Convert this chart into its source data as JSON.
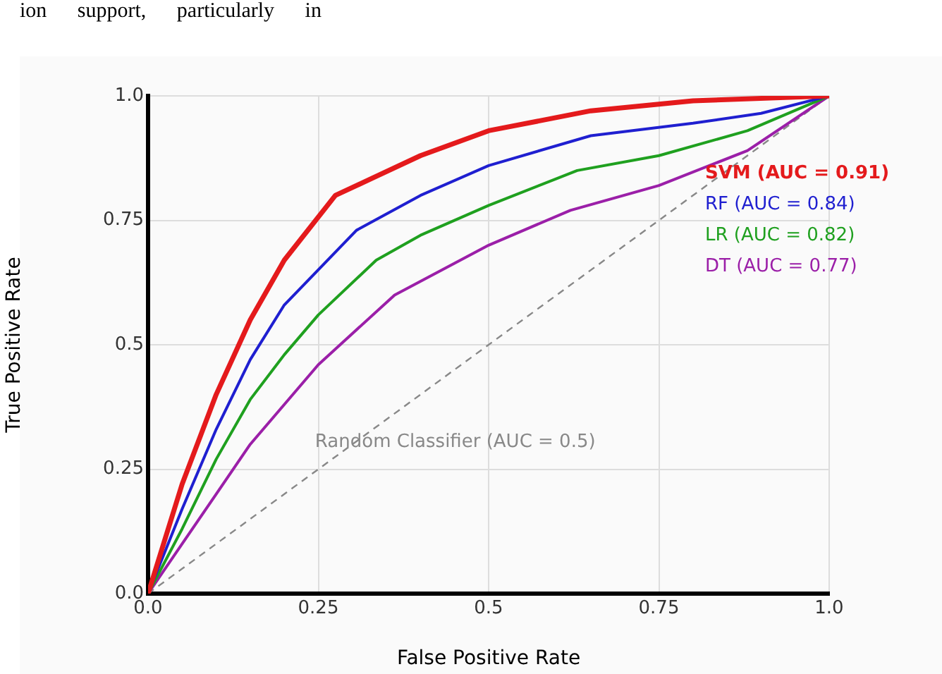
{
  "chart_data": {
    "type": "line",
    "xlabel": "False Positive Rate",
    "ylabel": "True Positive Rate",
    "annotations": [
      "ion support, particularly in"
    ],
    "xlim": [
      0,
      1
    ],
    "ylim": [
      0,
      1
    ],
    "xticks": [
      {
        "value": 0,
        "label": "0.0"
      },
      0.25,
      0.5,
      0.75,
      {
        "value": 1,
        "label": "1.0"
      }
    ],
    "yticks": [
      {
        "value": 0,
        "label": "0.0"
      },
      0.25,
      0.5,
      0.75,
      {
        "value": 1,
        "label": "1.0"
      }
    ],
    "grid": true,
    "legend": "top right",
    "marker": "none",
    "series": [
      {
        "name": "SVM (AUC = 0.91)",
        "color": "#e41a1c",
        "x": [
          0,
          0.05,
          0.1,
          0.15,
          0.2,
          0.275,
          0.4,
          0.5,
          0.65,
          0.8,
          1
        ],
        "values": [
          0,
          0.22,
          0.4,
          0.55,
          0.67,
          0.8,
          0.88,
          0.93,
          0.97,
          0.99,
          1
        ]
      },
      {
        "name": "RF (AUC = 0.84)",
        "color": "#1f1fd0",
        "x": [
          0,
          0.05,
          0.1,
          0.15,
          0.2,
          0.306,
          0.4,
          0.5,
          0.65,
          0.8,
          0.9,
          1
        ],
        "values": [
          0,
          0.17,
          0.33,
          0.47,
          0.58,
          0.73,
          0.8,
          0.86,
          0.92,
          0.945,
          0.965,
          1
        ]
      },
      {
        "name": "LR (AUC = 0.82)",
        "color": "#1fa01f",
        "x": [
          0,
          0.05,
          0.1,
          0.15,
          0.2,
          0.25,
          0.335,
          0.4,
          0.5,
          0.63,
          0.75,
          0.88,
          1
        ],
        "values": [
          0,
          0.13,
          0.27,
          0.39,
          0.48,
          0.56,
          0.67,
          0.72,
          0.78,
          0.85,
          0.88,
          0.93,
          1
        ]
      },
      {
        "name": "DT (AUC = 0.77)",
        "color": "#9b1fa8",
        "x": [
          0,
          0.05,
          0.1,
          0.15,
          0.2,
          0.25,
          0.362,
          0.5,
          0.62,
          0.75,
          0.88,
          1
        ],
        "values": [
          0,
          0.1,
          0.2,
          0.3,
          0.38,
          0.46,
          0.6,
          0.7,
          0.77,
          0.82,
          0.89,
          1
        ]
      },
      {
        "name": "Random Classifier (AUC = 0.5)",
        "color": "#888888",
        "line_style": "dashed",
        "x": [
          0,
          1
        ],
        "values": [
          0,
          1
        ]
      }
    ]
  }
}
